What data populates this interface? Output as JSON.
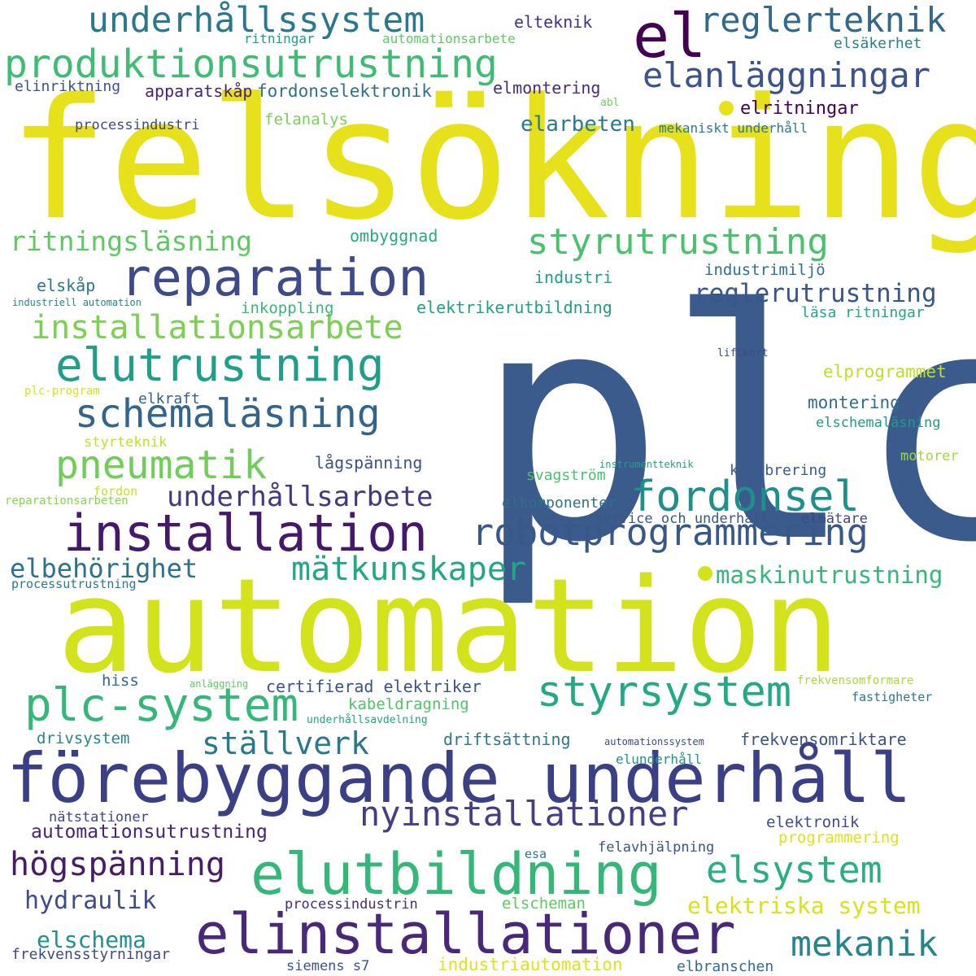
{
  "palette": {
    "background": "#ffffff",
    "scheme": "viridis"
  },
  "words": [
    {
      "text": "plc",
      "color": "#3b5b8c"
    },
    {
      "text": "felsökning",
      "color": "#e6e11a"
    },
    {
      "text": "automation",
      "color": "#d2e21b"
    },
    {
      "text": "förebyggande underhåll",
      "color": "#3b3f86"
    },
    {
      "text": "elinstallationer",
      "color": "#482878"
    },
    {
      "text": "elutbildning",
      "color": "#35b779"
    },
    {
      "text": "installation",
      "color": "#46186b"
    },
    {
      "text": "reparation",
      "color": "#3e4a89"
    },
    {
      "text": "produktionsutrustning",
      "color": "#3fbc73"
    },
    {
      "text": "robotprogrammering",
      "color": "#38588c"
    },
    {
      "text": "elutrustning",
      "color": "#1f9f88"
    },
    {
      "text": "styrsystem",
      "color": "#23a983"
    },
    {
      "text": "fordonsel",
      "color": "#1f8f8c"
    },
    {
      "text": "plc-system",
      "color": "#35b779"
    },
    {
      "text": "schemaläsning",
      "color": "#32648e"
    },
    {
      "text": "underhållssystem",
      "color": "#2a788e"
    },
    {
      "text": "styrutrustning",
      "color": "#4ac16d"
    },
    {
      "text": "installationsarbete",
      "color": "#7ad151"
    },
    {
      "text": "pneumatik",
      "color": "#6ece58"
    },
    {
      "text": "elsystem",
      "color": "#2ab07f"
    },
    {
      "text": "el",
      "color": "#440154"
    },
    {
      "text": "reglerteknik",
      "color": "#31688e"
    },
    {
      "text": "elanläggningar",
      "color": "#3b528b"
    },
    {
      "text": "nyinstallationer",
      "color": "#433e85"
    },
    {
      "text": "mekanik",
      "color": "#25858e"
    },
    {
      "text": "ritningsläsning",
      "color": "#5ec962"
    },
    {
      "text": "mätkunskaper",
      "color": "#22a785"
    },
    {
      "text": "underhållsarbete",
      "color": "#453781"
    },
    {
      "text": "ställverk",
      "color": "#29798e"
    },
    {
      "text": "högspänning",
      "color": "#481a6c"
    },
    {
      "text": "reglerutrustning",
      "color": "#39568c"
    },
    {
      "text": "elbehörighet",
      "color": "#2c718e"
    },
    {
      "text": "maskinutrustning",
      "color": "#35b779"
    },
    {
      "text": "elektriska system",
      "color": "#d8e219"
    },
    {
      "text": "hydraulik",
      "color": "#3e4c8a"
    },
    {
      "text": "elschema",
      "color": "#21908d"
    },
    {
      "text": "automationsutrustning",
      "color": "#482475"
    },
    {
      "text": "elarbeten",
      "color": "#287c8e"
    },
    {
      "text": "elritningar",
      "color": "#440154"
    },
    {
      "text": "elteknik",
      "color": "#46327e"
    },
    {
      "text": "ritningar",
      "color": "#1f9a8a"
    },
    {
      "text": "automationsarbete",
      "color": "#5ec962"
    },
    {
      "text": "elsäkerhet",
      "color": "#26828e"
    },
    {
      "text": "elinriktning",
      "color": "#3b528b"
    },
    {
      "text": "apparatskåp",
      "color": "#482475"
    },
    {
      "text": "fordonselektronik",
      "color": "#2c728e"
    },
    {
      "text": "elmontering",
      "color": "#472c7a"
    },
    {
      "text": "abl",
      "color": "#6ece58"
    },
    {
      "text": "processindustri",
      "color": "#3e4989"
    },
    {
      "text": "felanalys",
      "color": "#7ad151"
    },
    {
      "text": "mekaniskt underhåll",
      "color": "#2a788e"
    },
    {
      "text": "ombyggnad",
      "color": "#25ab82"
    },
    {
      "text": "industri",
      "color": "#1f9e89"
    },
    {
      "text": "industrimiljö",
      "color": "#2c718e"
    },
    {
      "text": "elskåp",
      "color": "#2a788e"
    },
    {
      "text": "inkoppling",
      "color": "#37b878"
    },
    {
      "text": "elektrikerutbildning",
      "color": "#1f9e89"
    },
    {
      "text": "industriell automation",
      "color": "#25858e"
    },
    {
      "text": "läsa ritningar",
      "color": "#22a884"
    },
    {
      "text": "liftkort",
      "color": "#3e4a89"
    },
    {
      "text": "elprogrammet",
      "color": "#bddf26"
    },
    {
      "text": "elkraft",
      "color": "#35608d"
    },
    {
      "text": "plc-program",
      "color": "#d8e219"
    },
    {
      "text": "montering",
      "color": "#2e6e8e"
    },
    {
      "text": "elschemaläsning",
      "color": "#1f9a8a"
    },
    {
      "text": "styrteknik",
      "color": "#c2df23"
    },
    {
      "text": "lågspänning",
      "color": "#3b528b"
    },
    {
      "text": "motorer",
      "color": "#a0da39"
    },
    {
      "text": "instrumentteknik",
      "color": "#1fa187"
    },
    {
      "text": "svagström",
      "color": "#4ac16d"
    },
    {
      "text": "kalibrering",
      "color": "#365c8d"
    },
    {
      "text": "fordon",
      "color": "#cae11f"
    },
    {
      "text": "reparationsarbeten",
      "color": "#86d549"
    },
    {
      "text": "elkomponenter",
      "color": "#2e6f8e"
    },
    {
      "text": "service och underhåll",
      "color": "#39568c"
    },
    {
      "text": "elmätare",
      "color": "#3f4788"
    },
    {
      "text": "processutrustning",
      "color": "#2a788e"
    },
    {
      "text": "hiss",
      "color": "#31688e"
    },
    {
      "text": "anläggning",
      "color": "#5ec962"
    },
    {
      "text": "certifierad elektriker",
      "color": "#3b528b"
    },
    {
      "text": "frekvensomformare",
      "color": "#a5db36"
    },
    {
      "text": "kabeldragning",
      "color": "#4ec36b"
    },
    {
      "text": "fastigheter",
      "color": "#2a788e"
    },
    {
      "text": "underhållsavdelning",
      "color": "#20a486"
    },
    {
      "text": "drivsystem",
      "color": "#25848e"
    },
    {
      "text": "driftsättning",
      "color": "#2a778e"
    },
    {
      "text": "automationssystem",
      "color": "#3e4989"
    },
    {
      "text": "frekvensomriktare",
      "color": "#3b528b"
    },
    {
      "text": "elunderhåll",
      "color": "#21918c"
    },
    {
      "text": "nätstationer",
      "color": "#414487"
    },
    {
      "text": "elektronik",
      "color": "#3e4c8a"
    },
    {
      "text": "programmering",
      "color": "#dde318"
    },
    {
      "text": "esa",
      "color": "#2a788e"
    },
    {
      "text": "felavhjälpning",
      "color": "#3b528b"
    },
    {
      "text": "processindustrin",
      "color": "#472d7b"
    },
    {
      "text": "elscheman",
      "color": "#5ec962"
    },
    {
      "text": "frekvensstyrningar",
      "color": "#3e4a89"
    },
    {
      "text": "siemens s7",
      "color": "#3b528b"
    },
    {
      "text": "industriautomation",
      "color": "#dde318"
    },
    {
      "text": "elbranschen",
      "color": "#2e6e8e"
    }
  ],
  "dots": [
    {
      "color": "#e6e11a"
    },
    {
      "color": "#d2e21b"
    }
  ]
}
